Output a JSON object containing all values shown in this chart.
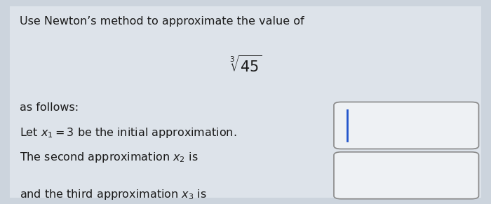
{
  "background_color": "#ccd4dd",
  "panel_color": "#dde3ea",
  "text_color": "#1a1a1a",
  "title_line1": "Use Newton’s method to approximate the value of",
  "cube_root_text": "$\\sqrt[3]{45}$",
  "line3": "as follows:",
  "line4": "Let $x_1 = 3$ be the initial approximation.",
  "line5_pre": "The second approximation $x_2$ is",
  "line6_pre": "and the third approximation $x_3$ is",
  "box_edge_color": "#888888",
  "box_face_color": "#eef1f4",
  "cursor_color": "#2255cc",
  "fontsize": 11.5,
  "math_fontsize": 15
}
